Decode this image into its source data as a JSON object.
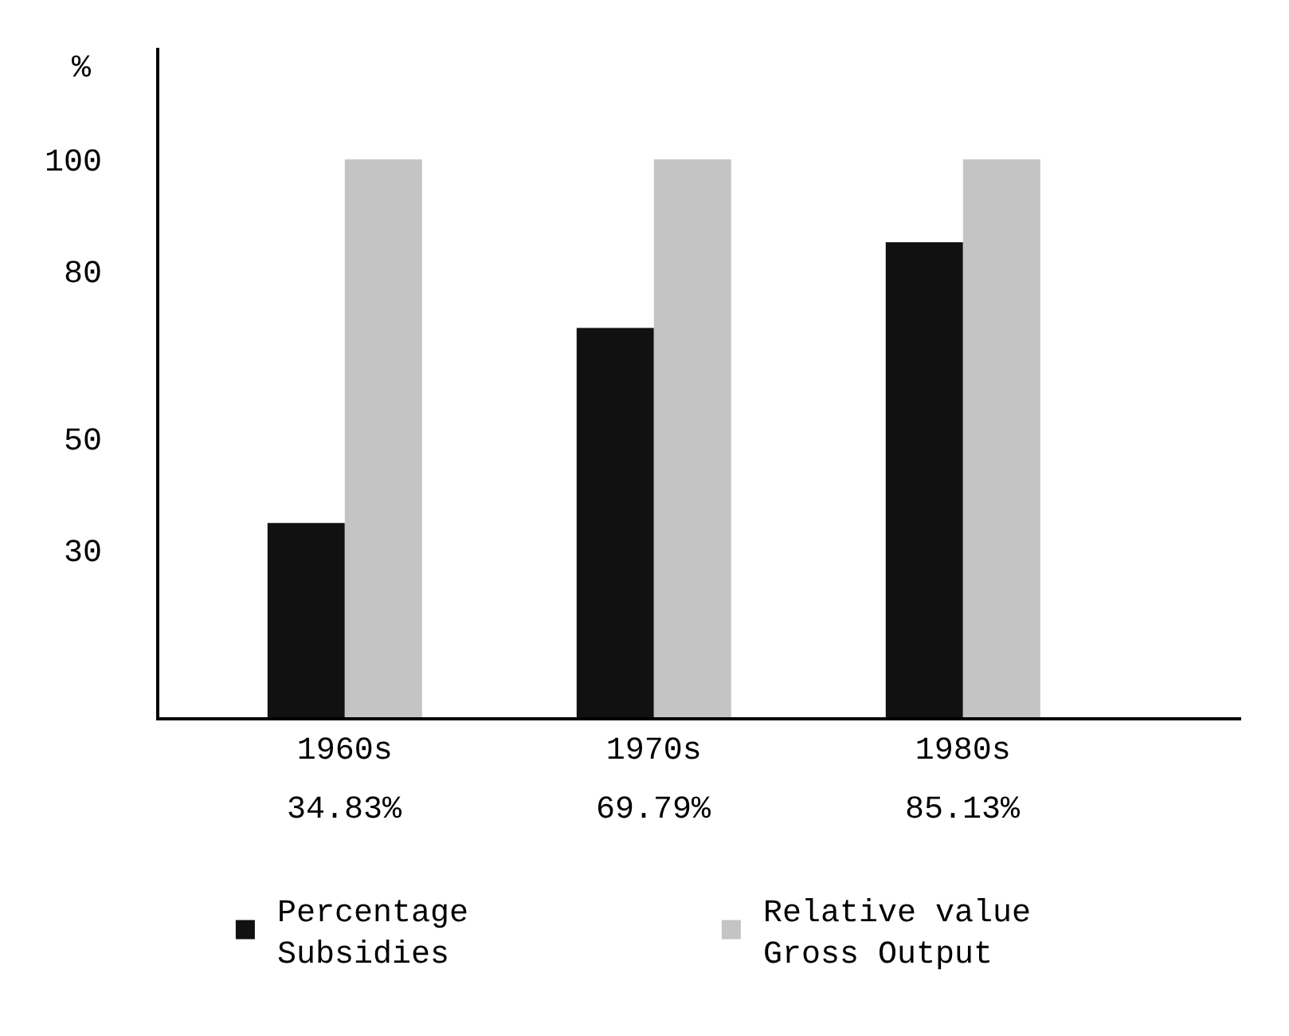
{
  "chart_data": {
    "type": "bar",
    "ylabel": "%",
    "categories": [
      "1960s",
      "1970s",
      "1980s"
    ],
    "series": [
      {
        "name": "Percentage\nSubsidies",
        "color": "#111111",
        "values": [
          34.83,
          69.79,
          85.13
        ],
        "value_labels": [
          "34.83%",
          "69.79%",
          "85.13%"
        ]
      },
      {
        "name": "Relative value\nGross Output",
        "color": "#c4c4c4",
        "values": [
          100,
          100,
          100
        ]
      }
    ],
    "ylim": [
      0,
      120
    ],
    "yticks": [
      30,
      50,
      80,
      100
    ],
    "legend": "bottom"
  }
}
